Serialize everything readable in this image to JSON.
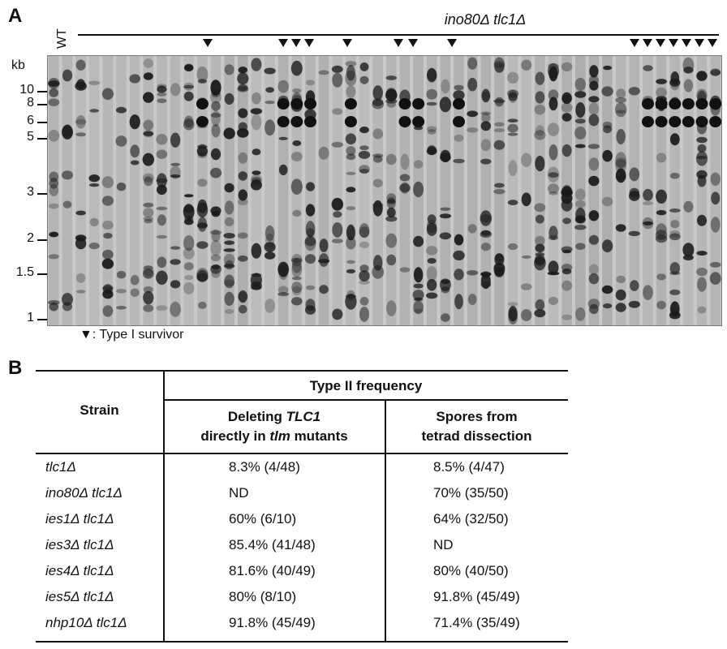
{
  "panel_a": {
    "letter": "A",
    "wt_label": "WT",
    "strain_title": "ino80Δ tlc1Δ",
    "kb_unit": "kb",
    "kb_markers": [
      "10",
      "8",
      "6",
      "5",
      "3",
      "2",
      "1.5",
      "1"
    ],
    "legend_symbol": "▼",
    "legend_text": ": Type I survivor"
  },
  "panel_b": {
    "letter": "B",
    "header": {
      "strain": "Strain",
      "group": "Type II frequency",
      "col1_line1_pre": "Deleting ",
      "col1_line1_em": "TLC1",
      "col1_line2_pre": "directly in ",
      "col1_line2_em": "tlm",
      "col1_line2_post": " mutants",
      "col2_line1": "Spores from",
      "col2_line2": "tetrad dissection"
    },
    "rows": [
      {
        "strain": "tlc1Δ",
        "direct": "8.3% (4/48)",
        "spores": "8.5% (4/47)"
      },
      {
        "strain": "ino80Δ tlc1Δ",
        "direct": "ND",
        "spores": "70% (35/50)"
      },
      {
        "strain": "ies1Δ tlc1Δ",
        "direct": "60% (6/10)",
        "spores": "64% (32/50)"
      },
      {
        "strain": "ies3Δ tlc1Δ",
        "direct": "85.4% (41/48)",
        "spores": "ND"
      },
      {
        "strain": "ies4Δ tlc1Δ",
        "direct": "81.6% (40/49)",
        "spores": "80% (40/50)"
      },
      {
        "strain": "ies5Δ tlc1Δ",
        "direct": "80% (8/10)",
        "spores": "91.8% (45/49)"
      },
      {
        "strain": "nhp10Δ tlc1Δ",
        "direct": "91.8% (45/49)",
        "spores": "71.4% (35/49)"
      }
    ]
  }
}
